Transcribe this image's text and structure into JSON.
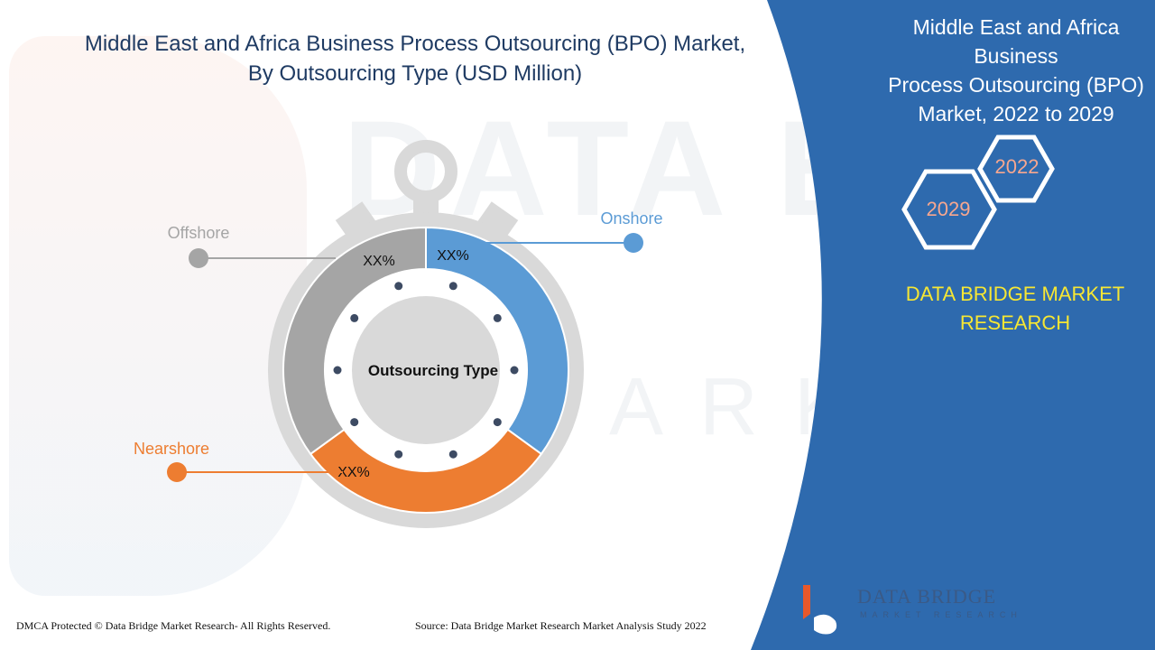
{
  "header": {
    "title_line1": "Middle East and Africa Business Process Outsourcing (BPO) Market,",
    "title_line2": "By Outsourcing Type (USD Million)"
  },
  "side_panel": {
    "title_line1": "Middle East and Africa Business",
    "title_line2": "Process Outsourcing (BPO)",
    "title_line3": "Market, 2022 to 2029",
    "year_start": "2022",
    "year_end": "2029",
    "brand_line1": "DATA BRIDGE MARKET",
    "brand_line2": "RESEARCH",
    "panel_color": "#2e6aae"
  },
  "watermark": {
    "line1": "DATA BRIDGE",
    "line2": "MARKET RESEARCH"
  },
  "footer": {
    "copyright": "DMCA Protected © Data Bridge Market Research- All Rights Reserved.",
    "source": "Source: Data Bridge Market Research Market Analysis Study 2022"
  },
  "logo": {
    "name_line1": "DATA BRIDGE",
    "name_line2": "MARKET RESEARCH"
  },
  "chart_data": {
    "type": "pie",
    "center_label": "Outsourcing Type",
    "segments": [
      {
        "name": "Onshore",
        "label": "XX%",
        "color": "#5b9bd5",
        "share": 0.35
      },
      {
        "name": "Nearshore",
        "label": "XX%",
        "color": "#ed7d31",
        "share": 0.3
      },
      {
        "name": "Offshore",
        "label": "XX%",
        "color": "#a5a5a5",
        "share": 0.35
      }
    ]
  }
}
